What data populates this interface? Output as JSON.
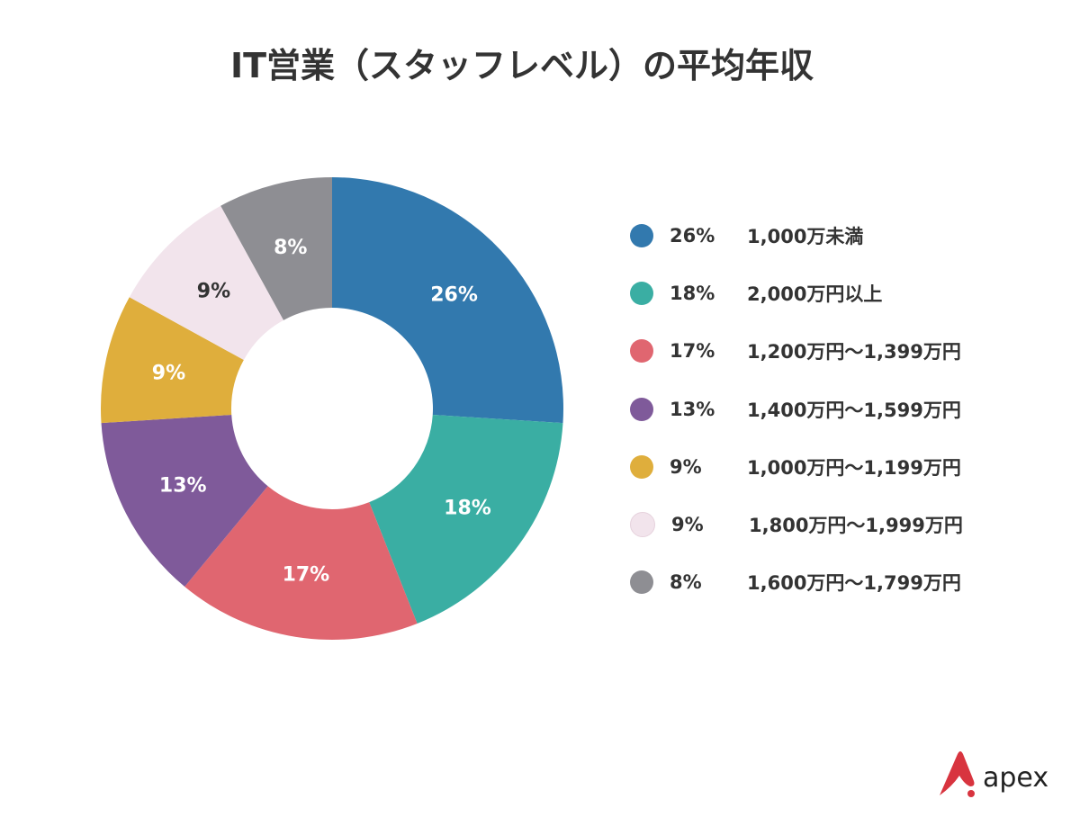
{
  "chart_data": {
    "type": "pie",
    "variant": "donut",
    "title": "IT営業（スタッフレベル）の平均年収",
    "categories": [
      "1,000万未満",
      "2,000万円以上",
      "1,200万円〜1,399万円",
      "1,400万円〜1,599万円",
      "1,000万円〜1,199万円",
      "1,800万円〜1,999万円",
      "1,600万円〜1,799万円"
    ],
    "values": [
      26,
      18,
      17,
      13,
      9,
      9,
      8
    ],
    "value_labels": [
      "26%",
      "18%",
      "17%",
      "13%",
      "9%",
      "9%",
      "8%"
    ],
    "colors": [
      "#3279ae",
      "#3aaea3",
      "#e06670",
      "#7f5a9a",
      "#dfae3c",
      "#f2e4ec",
      "#8e8e93"
    ],
    "label_colors": [
      "#ffffff",
      "#ffffff",
      "#ffffff",
      "#ffffff",
      "#ffffff",
      "#333333",
      "#ffffff"
    ],
    "legend": "right"
  },
  "logo": {
    "text": "apex",
    "color": "#d8343f"
  }
}
